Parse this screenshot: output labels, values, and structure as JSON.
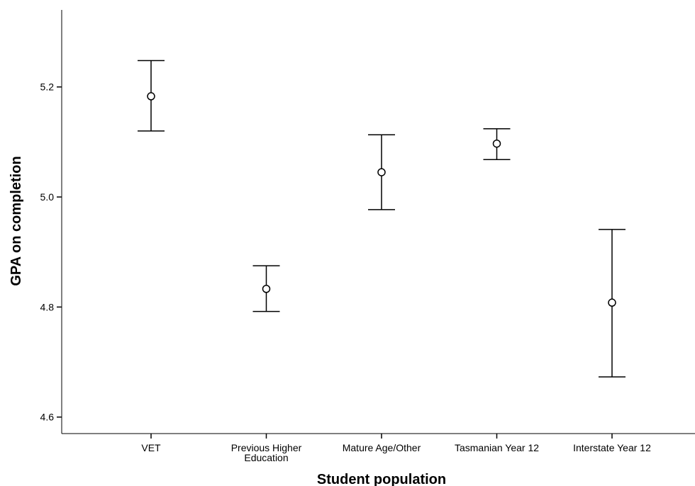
{
  "chart_data": {
    "type": "errorbar",
    "xlabel": "Student population",
    "ylabel": "GPA on completion",
    "ylim": [
      4.57,
      5.34
    ],
    "y_ticks": [
      "4.6",
      "4.8",
      "5.0",
      "5.2"
    ],
    "grid": false,
    "categories": [
      [
        "VET"
      ],
      [
        "Previous Higher",
        "Education"
      ],
      [
        "Mature Age/Other"
      ],
      [
        "Tasmanian Year 12"
      ],
      [
        "Interstate Year 12"
      ]
    ],
    "series": [
      {
        "points": [
          {
            "mean": 5.183,
            "lower": 5.12,
            "upper": 5.248
          },
          {
            "mean": 4.833,
            "lower": 4.792,
            "upper": 4.875
          },
          {
            "mean": 5.045,
            "lower": 4.977,
            "upper": 5.113
          },
          {
            "mean": 5.097,
            "lower": 5.068,
            "upper": 5.124
          },
          {
            "mean": 4.808,
            "lower": 4.673,
            "upper": 4.941
          }
        ]
      }
    ]
  }
}
